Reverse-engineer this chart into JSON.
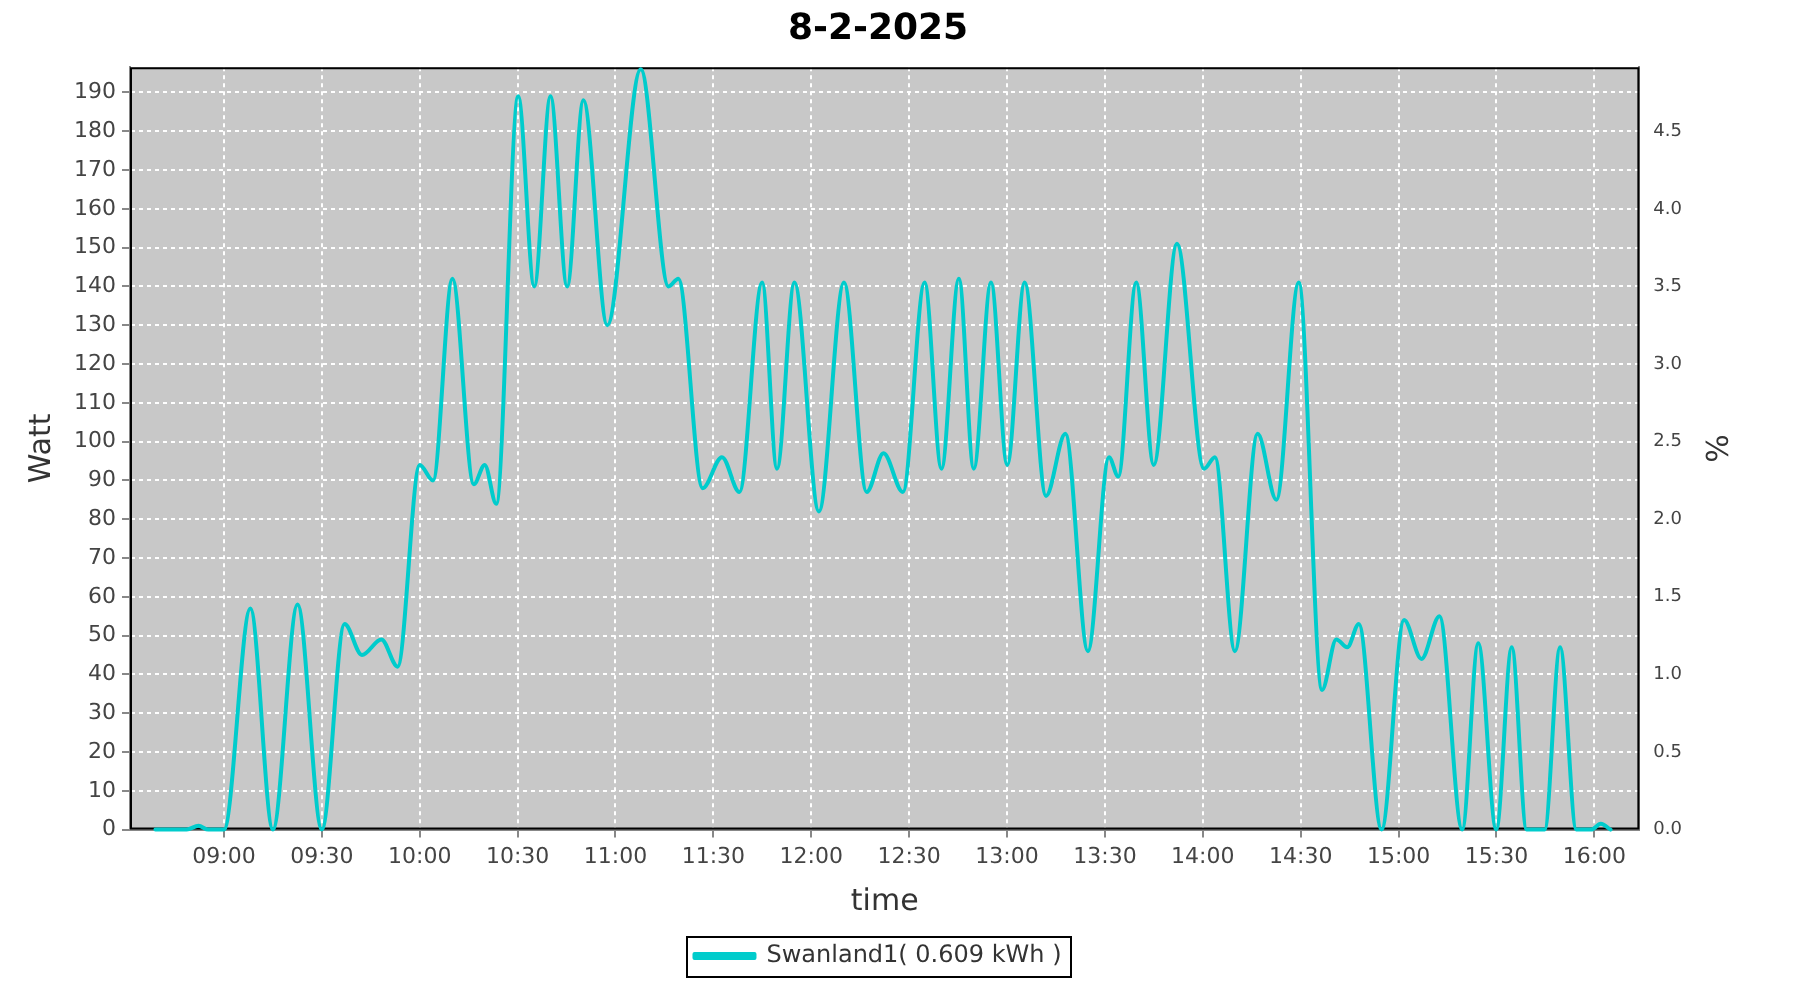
{
  "chart_data": {
    "type": "line",
    "title": "8-2-2025",
    "xlabel": "time",
    "ylabel": "Watt",
    "y2label": "%",
    "xlim": [
      8.52,
      16.23
    ],
    "ylim": [
      0,
      196.5
    ],
    "y2lim": [
      0,
      4.9125
    ],
    "xticks": [
      {
        "value": 9,
        "label": "09:00"
      },
      {
        "value": 9.5,
        "label": "09:30"
      },
      {
        "value": 10,
        "label": "10:00"
      },
      {
        "value": 10.5,
        "label": "10:30"
      },
      {
        "value": 11,
        "label": "11:00"
      },
      {
        "value": 11.5,
        "label": "11:30"
      },
      {
        "value": 12,
        "label": "12:00"
      },
      {
        "value": 12.5,
        "label": "12:30"
      },
      {
        "value": 13,
        "label": "13:00"
      },
      {
        "value": 13.5,
        "label": "13:30"
      },
      {
        "value": 14,
        "label": "14:00"
      },
      {
        "value": 14.5,
        "label": "14:30"
      },
      {
        "value": 15,
        "label": "15:00"
      },
      {
        "value": 15.5,
        "label": "15:30"
      },
      {
        "value": 16,
        "label": "16:00"
      }
    ],
    "yticks": [
      0,
      10,
      20,
      30,
      40,
      50,
      60,
      70,
      80,
      90,
      100,
      110,
      120,
      130,
      140,
      150,
      160,
      170,
      180,
      190
    ],
    "y2ticks": [
      {
        "value": 0,
        "label": "0.0"
      },
      {
        "value": 0.5,
        "label": "0.5"
      },
      {
        "value": 1,
        "label": "1.0"
      },
      {
        "value": 1.5,
        "label": "1.5"
      },
      {
        "value": 2,
        "label": "2.0"
      },
      {
        "value": 2.5,
        "label": "2.5"
      },
      {
        "value": 3,
        "label": "3.0"
      },
      {
        "value": 3.5,
        "label": "3.5"
      },
      {
        "value": 4,
        "label": "4.0"
      },
      {
        "value": 4.5,
        "label": "4.5"
      }
    ],
    "grid": true,
    "legend": "bottom",
    "marker": "none",
    "line_style": "solid",
    "x": [
      8.65,
      8.81,
      8.87,
      8.92,
      9.0,
      9.135,
      9.25,
      9.376,
      9.5,
      9.616,
      9.705,
      9.804,
      9.887,
      10.0,
      10.068,
      10.167,
      10.276,
      10.332,
      10.391,
      10.503,
      10.585,
      10.668,
      10.753,
      10.836,
      10.958,
      11.129,
      11.271,
      11.321,
      11.445,
      11.544,
      11.633,
      11.749,
      11.825,
      11.914,
      12.039,
      12.167,
      12.283,
      12.369,
      12.468,
      12.579,
      12.665,
      12.754,
      12.83,
      12.918,
      13.001,
      13.09,
      13.199,
      13.298,
      13.413,
      13.521,
      13.568,
      13.66,
      13.749,
      13.868,
      14.006,
      14.062,
      14.164,
      14.28,
      14.376,
      14.49,
      14.609,
      14.682,
      14.738,
      14.797,
      14.913,
      15.028,
      15.117,
      15.209,
      15.325,
      15.407,
      15.499,
      15.578,
      15.654,
      15.746,
      15.825,
      15.908,
      15.984,
      16.033,
      16.083
    ],
    "series": [
      {
        "name": "Swanland1( 0.609 kWh )",
        "color": "#00cccc",
        "values": [
          0,
          0,
          1,
          0,
          0,
          57,
          0,
          58,
          0,
          53,
          45,
          49,
          42,
          94,
          90,
          142,
          89,
          94,
          84,
          189,
          140,
          189,
          140,
          188,
          130,
          196,
          140,
          142,
          88,
          96,
          87,
          141,
          93,
          141,
          82,
          141,
          87,
          97,
          87,
          141,
          93,
          142,
          93,
          141,
          94,
          141,
          86,
          102,
          46,
          96,
          91,
          141,
          94,
          151,
          93,
          96,
          46,
          102,
          85,
          141,
          36,
          49,
          47,
          53,
          0,
          54,
          44,
          55,
          0,
          48,
          0,
          47,
          0,
          0,
          47,
          0,
          0,
          1.5,
          0
        ]
      }
    ]
  }
}
